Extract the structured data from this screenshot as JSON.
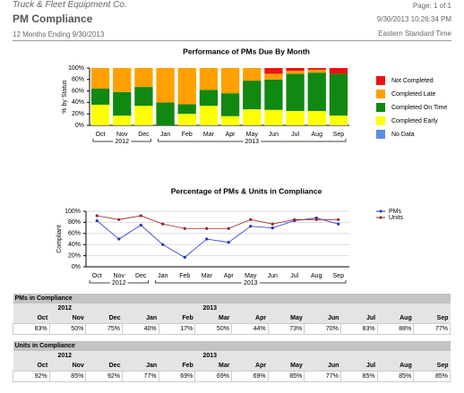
{
  "header": {
    "company": "Truck & Fleet Equipment Co.",
    "title": "PM Compliance",
    "subtitle": "12 Months Ending 9/30/2013",
    "page": "Page: 1 of 1",
    "timestamp": "9/30/2013 10:26:34 PM",
    "timezone": "Eastern Standard Time"
  },
  "chart_data": [
    {
      "type": "bar",
      "stacked": true,
      "title": "Performance of PMs Due By Month",
      "y_label": "% by Status",
      "categories": [
        "Oct",
        "Nov",
        "Dec",
        "Jan",
        "Feb",
        "Mar",
        "Apr",
        "May",
        "Jun",
        "Jul",
        "Aug",
        "Sep"
      ],
      "year_groups": [
        {
          "label": "2012",
          "count": 3
        },
        {
          "label": "2013",
          "count": 9
        }
      ],
      "series": [
        {
          "name": "Not Completed",
          "color": "#ee1111",
          "values": [
            0,
            0,
            0,
            0,
            0,
            0,
            0,
            0,
            10,
            5,
            3,
            10
          ]
        },
        {
          "name": "Completed Late",
          "color": "#ffa000",
          "values": [
            36,
            42,
            33,
            60,
            63,
            38,
            44,
            22,
            10,
            5,
            5,
            0
          ]
        },
        {
          "name": "Completed On Time",
          "color": "#118811",
          "values": [
            28,
            41,
            33,
            40,
            17,
            28,
            40,
            50,
            53,
            65,
            67,
            73
          ]
        },
        {
          "name": "Completed Early",
          "color": "#ffff00",
          "values": [
            36,
            17,
            34,
            0,
            20,
            34,
            16,
            28,
            27,
            25,
            25,
            17
          ]
        },
        {
          "name": "No Data",
          "color": "#5b8fdf",
          "values": [
            0,
            0,
            0,
            0,
            0,
            0,
            0,
            0,
            0,
            0,
            0,
            0
          ]
        }
      ],
      "ylim": [
        0,
        100
      ],
      "yticks": [
        {
          "value": 0,
          "label": "0%"
        },
        {
          "value": 20,
          "label": "20%"
        },
        {
          "value": 40,
          "label": "40%"
        },
        {
          "value": 60,
          "label": "60%"
        },
        {
          "value": 80,
          "label": "80%"
        },
        {
          "value": 100,
          "label": "100%"
        }
      ],
      "legend": "right"
    },
    {
      "type": "line",
      "title": "Percentage of PMs & Units in Compliance",
      "y_label": "Compliant",
      "categories": [
        "Oct",
        "Nov",
        "Dec",
        "Jan",
        "Feb",
        "Mar",
        "Apr",
        "May",
        "Jun",
        "Jul",
        "Aug",
        "Sep"
      ],
      "year_groups": [
        {
          "label": "2012",
          "count": 3
        },
        {
          "label": "2013",
          "count": 9
        }
      ],
      "series": [
        {
          "name": "PMs",
          "color": "#2233cc",
          "values": [
            83,
            50,
            75,
            40,
            17,
            50,
            44,
            73,
            70,
            83,
            88,
            77
          ]
        },
        {
          "name": "Units",
          "color": "#992222",
          "values": [
            92,
            85,
            92,
            77,
            69,
            69,
            69,
            85,
            77,
            85,
            85,
            85
          ]
        }
      ],
      "ylim": [
        0,
        100
      ],
      "yticks": [
        {
          "value": 0,
          "label": "0%"
        },
        {
          "value": 20,
          "label": "20%"
        },
        {
          "value": 40,
          "label": "40%"
        },
        {
          "value": 60,
          "label": "60%"
        },
        {
          "value": 80,
          "label": "80%"
        },
        {
          "value": 100,
          "label": "100%"
        }
      ],
      "legend": "upper right"
    }
  ],
  "tables": [
    {
      "title": "PMs in Compliance",
      "years": [
        {
          "label": "2012",
          "span": 3
        },
        {
          "label": "2013",
          "span": 9
        }
      ],
      "months": [
        "Oct",
        "Nov",
        "Dec",
        "Jan",
        "Feb",
        "Mar",
        "Apr",
        "May",
        "Jun",
        "Jul",
        "Aug",
        "Sep"
      ],
      "values": [
        "83%",
        "50%",
        "75%",
        "40%",
        "17%",
        "50%",
        "44%",
        "73%",
        "70%",
        "83%",
        "88%",
        "77%"
      ]
    },
    {
      "title": "Units in Compliance",
      "years": [
        {
          "label": "2012",
          "span": 3
        },
        {
          "label": "2013",
          "span": 9
        }
      ],
      "months": [
        "Oct",
        "Nov",
        "Dec",
        "Jan",
        "Feb",
        "Mar",
        "Apr",
        "May",
        "Jun",
        "Jul",
        "Aug",
        "Sep"
      ],
      "values": [
        "92%",
        "85%",
        "92%",
        "77%",
        "69%",
        "69%",
        "69%",
        "85%",
        "77%",
        "85%",
        "85%",
        "85%"
      ]
    }
  ]
}
